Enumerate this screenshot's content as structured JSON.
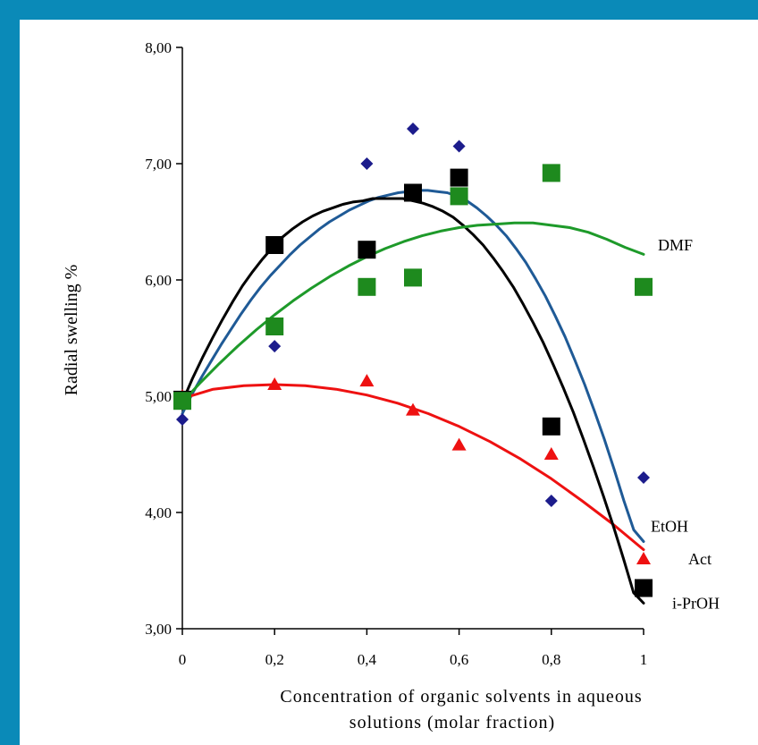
{
  "chart_data": {
    "type": "scatter",
    "xlabel": "Concentration of organic solvents in aqueous solutions (molar fraction)",
    "xlabel_lines": [
      "Concentration of organic solvents in aqueous",
      "solutions (molar fraction)"
    ],
    "ylabel": "Radial swelling %",
    "xlim": [
      0,
      1
    ],
    "ylim": [
      3,
      8
    ],
    "x_ticks": [
      0,
      0.2,
      0.4,
      0.6,
      0.8,
      1
    ],
    "x_tick_labels": [
      "0",
      "0,2",
      "0,4",
      "0,6",
      "0,8",
      "1"
    ],
    "y_ticks": [
      3,
      4,
      5,
      6,
      7,
      8
    ],
    "y_tick_labels": [
      "3,00",
      "4,00",
      "5,00",
      "6,00",
      "7,00",
      "8,00"
    ],
    "grid": false,
    "legend": "inline labels at right end of curves",
    "series": [
      {
        "name": "EtOH",
        "color": "#1c1c8c",
        "line_color": "#1f5a96",
        "marker": "diamond",
        "points": [
          [
            0,
            4.8
          ],
          [
            0.2,
            5.43
          ],
          [
            0.4,
            7.0
          ],
          [
            0.5,
            7.3
          ],
          [
            0.6,
            7.15
          ],
          [
            0.8,
            4.1
          ],
          [
            1,
            4.3
          ]
        ],
        "trend": [
          4.85,
          5.02,
          5.17,
          5.31,
          5.45,
          5.58,
          5.71,
          5.83,
          5.94,
          6.04,
          6.13,
          6.22,
          6.3,
          6.37,
          6.44,
          6.5,
          6.55,
          6.6,
          6.64,
          6.68,
          6.71,
          6.73,
          6.75,
          6.76,
          6.77,
          6.77,
          6.76,
          6.75,
          6.72,
          6.68,
          6.62,
          6.55,
          6.47,
          6.38,
          6.27,
          6.15,
          6.01,
          5.86,
          5.69,
          5.51,
          5.31,
          5.1,
          4.87,
          4.63,
          4.37,
          4.1,
          3.85,
          3.75
        ]
      },
      {
        "name": "Act",
        "color": "#ee1111",
        "line_color": "#ee1111",
        "marker": "triangle",
        "points": [
          [
            0,
            5.0
          ],
          [
            0.2,
            5.1
          ],
          [
            0.4,
            5.13
          ],
          [
            0.5,
            4.88
          ],
          [
            0.6,
            4.58
          ],
          [
            0.8,
            4.5
          ],
          [
            1,
            3.6
          ]
        ],
        "trend": [
          4.98,
          5.06,
          5.09,
          5.1,
          5.09,
          5.06,
          5.01,
          4.94,
          4.85,
          4.74,
          4.61,
          4.46,
          4.29,
          4.1,
          3.9,
          3.68
        ]
      },
      {
        "name": "i-PrOH",
        "color": "#000000",
        "line_color": "#000000",
        "marker": "square",
        "points": [
          [
            0,
            4.97
          ],
          [
            0.2,
            6.3
          ],
          [
            0.4,
            6.26
          ],
          [
            0.5,
            6.75
          ],
          [
            0.6,
            6.88
          ],
          [
            0.8,
            4.74
          ],
          [
            1,
            3.35
          ]
        ],
        "trend": [
          4.95,
          5.15,
          5.33,
          5.5,
          5.66,
          5.81,
          5.95,
          6.07,
          6.18,
          6.28,
          6.37,
          6.44,
          6.5,
          6.55,
          6.59,
          6.62,
          6.65,
          6.67,
          6.68,
          6.7,
          6.7,
          6.7,
          6.7,
          6.68,
          6.66,
          6.63,
          6.59,
          6.54,
          6.47,
          6.39,
          6.3,
          6.19,
          6.07,
          5.94,
          5.79,
          5.63,
          5.46,
          5.27,
          5.07,
          4.86,
          4.63,
          4.39,
          4.14,
          3.88,
          3.6,
          3.31,
          3.22
        ]
      },
      {
        "name": "DMF",
        "color": "#1e8a1e",
        "line_color": "#1e9a2a",
        "marker": "square",
        "points": [
          [
            0,
            4.96
          ],
          [
            0.2,
            5.6
          ],
          [
            0.4,
            5.94
          ],
          [
            0.5,
            6.02
          ],
          [
            0.6,
            6.72
          ],
          [
            0.8,
            6.92
          ],
          [
            1,
            5.94
          ]
        ],
        "trend": [
          4.95,
          5.12,
          5.28,
          5.43,
          5.57,
          5.7,
          5.82,
          5.93,
          6.03,
          6.12,
          6.2,
          6.27,
          6.33,
          6.38,
          6.42,
          6.45,
          6.47,
          6.48,
          6.49,
          6.49,
          6.47,
          6.45,
          6.41,
          6.35,
          6.28,
          6.22
        ]
      }
    ]
  }
}
